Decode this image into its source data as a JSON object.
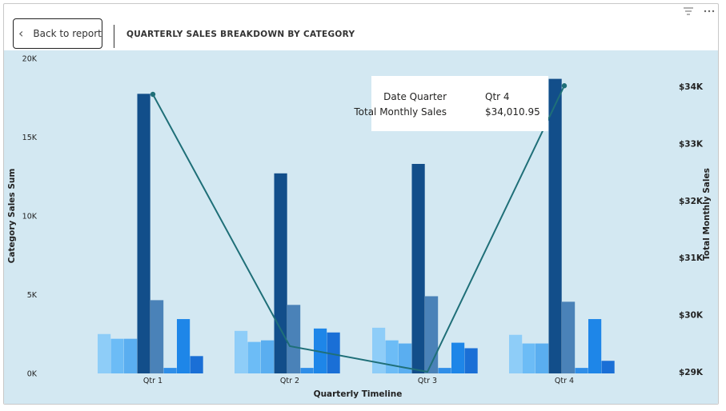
{
  "header": {
    "back_label": "Back to report",
    "title": "QUARTERLY SALES BREAKDOWN BY CATEGORY",
    "icons": [
      "filter-icon",
      "more-options-icon"
    ]
  },
  "tooltip": {
    "rows": [
      {
        "key": "Date Quarter",
        "value": "Qtr 4"
      },
      {
        "key": "Total Monthly Sales",
        "value": "$34,010.95"
      }
    ]
  },
  "chart_data": {
    "type": "bar",
    "xlabel": "Quarterly Timeline",
    "ylabel": "Category Sales Sum",
    "y2label": "Total Monthly Sales",
    "categories": [
      "Qtr 1",
      "Qtr 2",
      "Qtr 3",
      "Qtr 4"
    ],
    "ylim": [
      0,
      20000
    ],
    "yticks": [
      {
        "value": 0,
        "label": "0K"
      },
      {
        "value": 5000,
        "label": "5K"
      },
      {
        "value": 10000,
        "label": "10K"
      },
      {
        "value": 15000,
        "label": "15K"
      },
      {
        "value": 20000,
        "label": "20K"
      }
    ],
    "y2lim": [
      29000,
      34200
    ],
    "y2ticks": [
      {
        "value": 29000,
        "label": "$29K"
      },
      {
        "value": 30000,
        "label": "$30K"
      },
      {
        "value": 31000,
        "label": "$31K"
      },
      {
        "value": 32000,
        "label": "$32K"
      },
      {
        "value": 33000,
        "label": "$33K"
      },
      {
        "value": 34000,
        "label": "$34K"
      }
    ],
    "bar_series": [
      {
        "color": "#8ecdf8",
        "values": [
          2500,
          2700,
          2900,
          2450
        ]
      },
      {
        "color": "#6cbcf6",
        "values": [
          2200,
          2000,
          2100,
          1900
        ]
      },
      {
        "color": "#5aaef0",
        "values": [
          2200,
          2100,
          1900,
          1900
        ]
      },
      {
        "color": "#124e8a",
        "values": [
          17750,
          12700,
          13300,
          18700
        ]
      },
      {
        "color": "#4a82b8",
        "values": [
          4650,
          4350,
          4900,
          4550
        ]
      },
      {
        "color": "#2f8ee8",
        "values": [
          350,
          350,
          350,
          350
        ]
      },
      {
        "color": "#1e86e8",
        "values": [
          3450,
          2850,
          1950,
          3450
        ]
      },
      {
        "color": "#1a6fd6",
        "values": [
          1100,
          2600,
          1600,
          800
        ]
      }
    ],
    "line_series": {
      "color": "#1f6f78",
      "values": [
        33860,
        29450,
        29000,
        34010.95
      ]
    },
    "legend": "none",
    "grid": false
  }
}
